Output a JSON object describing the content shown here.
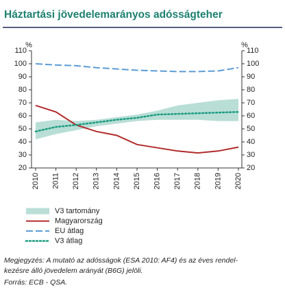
{
  "chart_data": {
    "type": "line",
    "title": "Háztartási jövedelemarányos adósságteher",
    "y_unit": "%",
    "y2_unit": "%",
    "categories": [
      "2010",
      "2011",
      "2012",
      "2013",
      "2014",
      "2015",
      "2016",
      "2017",
      "2018",
      "2019",
      "2020"
    ],
    "ylim": [
      20,
      110
    ],
    "yticks": [
      20,
      30,
      40,
      50,
      60,
      70,
      80,
      90,
      100,
      110
    ],
    "y2lim": [
      20,
      110
    ],
    "y2ticks": [
      20,
      30,
      40,
      50,
      60,
      70,
      80,
      90,
      100,
      110
    ],
    "series": [
      {
        "name": "V3 tartomány",
        "kind": "band",
        "color": "#b9ded6",
        "low": [
          42,
          46,
          49,
          52,
          54,
          56,
          57,
          57,
          57,
          56,
          56
        ],
        "high": [
          55,
          57,
          56,
          57,
          59,
          61,
          64,
          68,
          70,
          72,
          73
        ]
      },
      {
        "name": "Magyarország",
        "kind": "solid",
        "color": "#b22a2a",
        "values": [
          68,
          63,
          53,
          48,
          45,
          38,
          35.5,
          33,
          31.5,
          33,
          36
        ]
      },
      {
        "name": "EU átlag",
        "kind": "dashed",
        "color": "#5b9bd5",
        "values": [
          100,
          99,
          98.5,
          97,
          96,
          95,
          94.5,
          94,
          94,
          94.5,
          97
        ]
      },
      {
        "name": "V3 átlag",
        "kind": "dotted",
        "color": "#1a9b80",
        "values": [
          48,
          51.5,
          53,
          55,
          57,
          58.5,
          61,
          61.5,
          62,
          62.5,
          63
        ]
      }
    ],
    "note": [
      "Megjegyzés: A mutató az adósságok (ESA 2010: AF4) és az éves rendel-",
      "kezésre álló jövedelem arányát (B6G) jelöli."
    ],
    "source": "Forrás: ECB - QSA."
  }
}
